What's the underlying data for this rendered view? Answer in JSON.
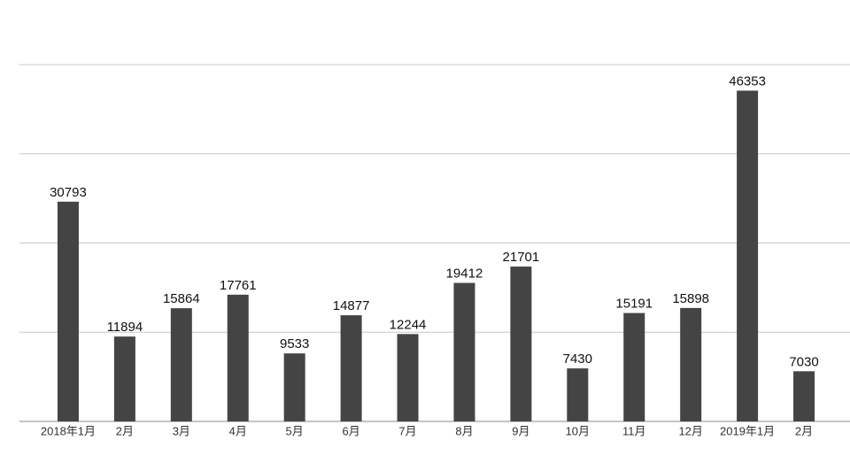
{
  "chart_data": {
    "type": "bar",
    "categories": [
      "2018年1月",
      "2月",
      "3月",
      "4月",
      "5月",
      "6月",
      "7月",
      "8月",
      "9月",
      "10月",
      "11月",
      "12月",
      "2019年1月",
      "2月"
    ],
    "values": [
      30793,
      11894,
      15864,
      17761,
      9533,
      14877,
      12244,
      19412,
      21701,
      7430,
      15191,
      15898,
      46353,
      7030
    ],
    "color": "#444444",
    "ylim": [
      0,
      50000
    ],
    "yticks": [
      0,
      12500,
      25000,
      37500,
      50000
    ],
    "grid": true
  }
}
